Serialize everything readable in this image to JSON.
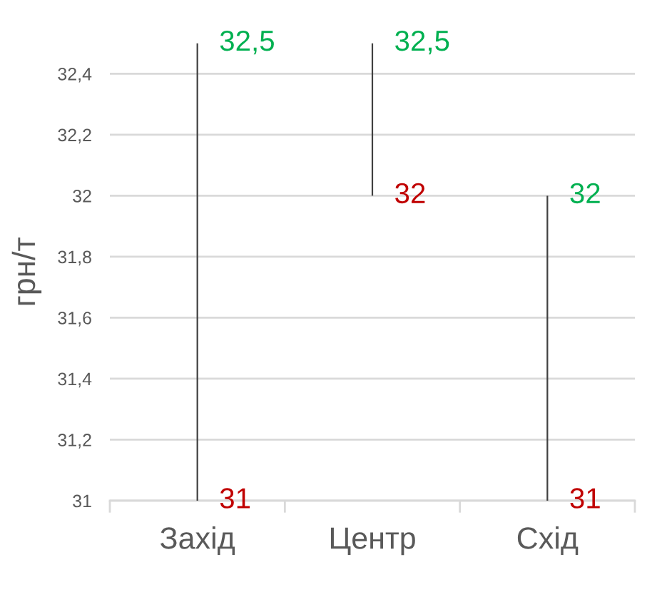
{
  "chart_data": {
    "type": "bar",
    "categories": [
      "Захід",
      "Центр",
      "Схід"
    ],
    "ylabel": "грн/т",
    "ylim": [
      31,
      32.5
    ],
    "yticks": [
      31,
      {
        "value": 31.2,
        "label": "31,2"
      },
      {
        "value": 31.4,
        "label": "31,4"
      },
      {
        "value": 31.6,
        "label": "31,6"
      },
      {
        "value": 31.8,
        "label": "31,8"
      },
      32,
      {
        "value": 32.2,
        "label": "32,2"
      },
      {
        "value": 32.4,
        "label": "32,4"
      }
    ],
    "grid": "y",
    "color": "#404040",
    "base": [
      31,
      32,
      31
    ],
    "values": [
      1.5,
      0.5,
      1.0
    ],
    "annotations": [
      {
        "text": "32,5",
        "x": "Захід",
        "y": 32.5
      },
      {
        "text": "31",
        "x": "Захід",
        "y": 31
      },
      {
        "text": "32,5",
        "x": "Центр",
        "y": 32.5
      },
      {
        "text": "32",
        "x": "Центр",
        "y": 32
      },
      {
        "text": "32",
        "x": "Схід",
        "y": 32
      },
      {
        "text": "31",
        "x": "Схід",
        "y": 31
      }
    ]
  }
}
